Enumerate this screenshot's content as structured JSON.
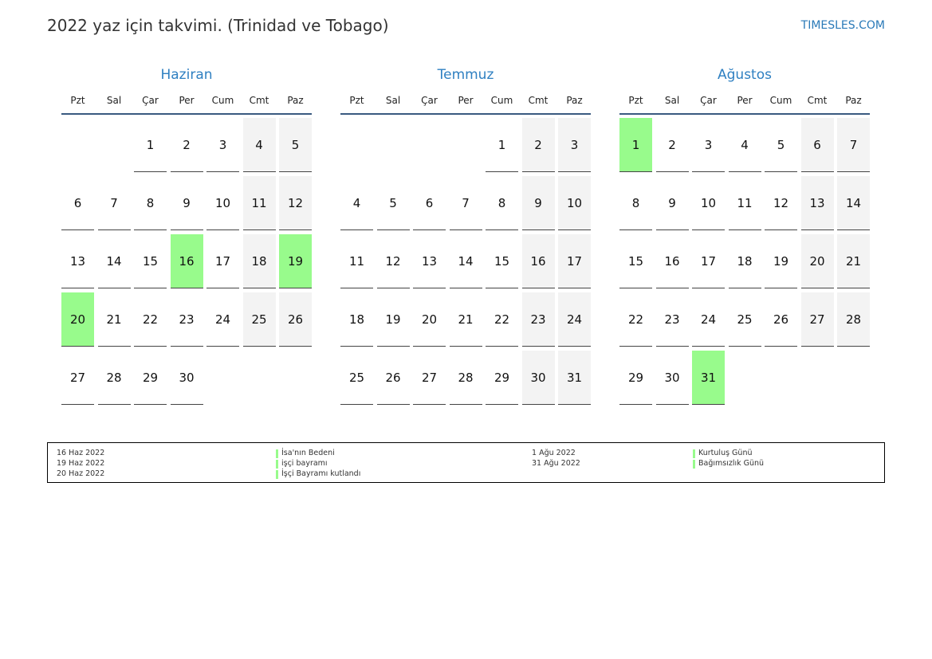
{
  "header": {
    "title": "2022 yaz için takvimi. (Trinidad ve Tobago)",
    "site": "TIMESLES.COM"
  },
  "weekdays": [
    "Pzt",
    "Sal",
    "Çar",
    "Per",
    "Cum",
    "Cmt",
    "Paz"
  ],
  "months": [
    {
      "name": "Haziran",
      "highlight": [
        16,
        19,
        20
      ],
      "weeks": [
        [
          null,
          null,
          1,
          2,
          3,
          4,
          5
        ],
        [
          6,
          7,
          8,
          9,
          10,
          11,
          12
        ],
        [
          13,
          14,
          15,
          16,
          17,
          18,
          19
        ],
        [
          20,
          21,
          22,
          23,
          24,
          25,
          26
        ],
        [
          27,
          28,
          29,
          30,
          null,
          null,
          null
        ]
      ]
    },
    {
      "name": "Temmuz",
      "highlight": [],
      "weeks": [
        [
          null,
          null,
          null,
          null,
          1,
          2,
          3
        ],
        [
          4,
          5,
          6,
          7,
          8,
          9,
          10
        ],
        [
          11,
          12,
          13,
          14,
          15,
          16,
          17
        ],
        [
          18,
          19,
          20,
          21,
          22,
          23,
          24
        ],
        [
          25,
          26,
          27,
          28,
          29,
          30,
          31
        ]
      ]
    },
    {
      "name": "Ağustos",
      "highlight": [
        1,
        31
      ],
      "weeks": [
        [
          1,
          2,
          3,
          4,
          5,
          6,
          7
        ],
        [
          8,
          9,
          10,
          11,
          12,
          13,
          14
        ],
        [
          15,
          16,
          17,
          18,
          19,
          20,
          21
        ],
        [
          22,
          23,
          24,
          25,
          26,
          27,
          28
        ],
        [
          29,
          30,
          31,
          null,
          null,
          null,
          null
        ]
      ]
    }
  ],
  "legend": {
    "columns": [
      [
        {
          "date": "16 Haz 2022",
          "name": "İsa'nın Bedeni"
        },
        {
          "date": "19 Haz 2022",
          "name": "işçi bayramı"
        },
        {
          "date": "20 Haz 2022",
          "name": "İşçi Bayramı kutlandı"
        }
      ],
      [
        {
          "date": "1 Ağu 2022",
          "name": "Kurtuluş Günü"
        },
        {
          "date": "31 Ağu 2022",
          "name": "Bağımsızlık Günü"
        }
      ]
    ]
  }
}
